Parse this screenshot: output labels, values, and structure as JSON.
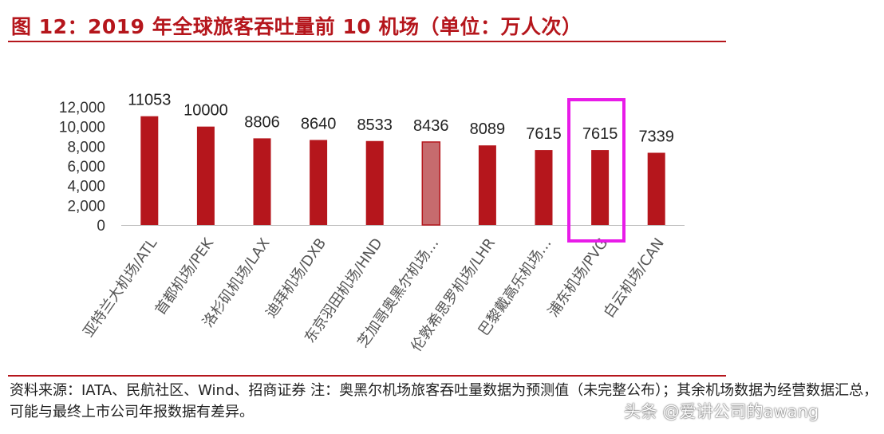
{
  "title": "图 12：2019 年全球旅客吞吐量前 10 机场（单位：万人次）",
  "footnote": "资料来源：IATA、民航社区、Wind、招商证券 注：奥黑尔机场旅客吞吐量数据为预测值（未完整公布）；其余机场数据为经营数据汇总，可能与最终上市公司年报数据有差异。",
  "watermark": "头条 @爱讲公司的awang",
  "colors": {
    "bar": "#b5161c",
    "bar_estimated": "#c66b6e",
    "highlight": "#e81be8",
    "title": "#b5161c"
  },
  "chart_data": {
    "type": "bar",
    "categories": [
      "亚特兰大机场/ATL",
      "首都机场/PEK",
      "洛杉矶机场/LAX",
      "迪拜机场/DXB",
      "东京羽田机场/HND",
      "芝加哥奥黑尔机场…",
      "伦敦希思罗机场/LHR",
      "巴黎戴高乐机场…",
      "浦东机场/PVG",
      "白云机场/CAN"
    ],
    "values": [
      11053,
      10000,
      8806,
      8640,
      8533,
      8436,
      8089,
      7615,
      7615,
      7339
    ],
    "data_labels": [
      "11053",
      "10000",
      "8806",
      "8640",
      "8533",
      "8436",
      "8089",
      "7615",
      "7615",
      "7339"
    ],
    "yticks": [
      "0",
      "2,000",
      "4,000",
      "6,000",
      "8,000",
      "10,000",
      "12,000"
    ],
    "ylim": [
      0,
      12000
    ],
    "estimated_index": 5,
    "highlight_index": 8,
    "grid": false,
    "legend": "none"
  }
}
